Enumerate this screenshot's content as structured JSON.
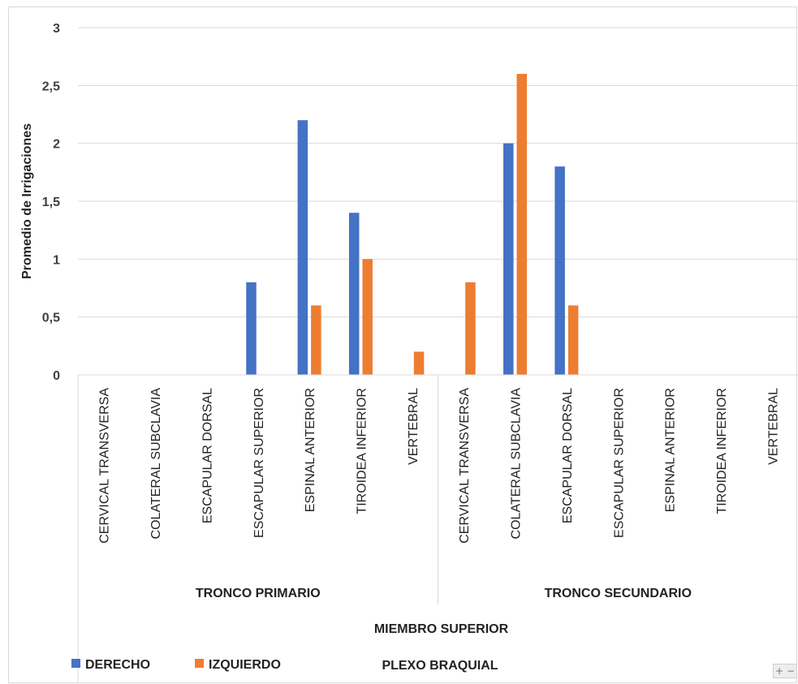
{
  "chart_data": {
    "type": "bar",
    "ylabel": "Promedio de Irrigaciones",
    "ylim": [
      0,
      3
    ],
    "yticks": [
      "0",
      "0,5",
      "1",
      "1,5",
      "2",
      "2,5",
      "3"
    ],
    "grid": true,
    "legend_position": "bottom-left",
    "categories": [
      "CERVICAL TRANSVERSA",
      "COLATERAL SUBCLAVIA",
      "ESCAPULAR DORSAL",
      "ESCAPULAR SUPERIOR",
      "ESPINAL ANTERIOR",
      "TIROIDEA INFERIOR",
      "VERTEBRAL",
      "CERVICAL TRANSVERSA",
      "COLATERAL SUBCLAVIA",
      "ESCAPULAR DORSAL",
      "ESCAPULAR SUPERIOR",
      "ESPINAL ANTERIOR",
      "TIROIDEA INFERIOR",
      "VERTEBRAL"
    ],
    "groups": [
      {
        "label": "TRONCO PRIMARIO",
        "count": 7
      },
      {
        "label": "TRONCO SECUNDARIO",
        "count": 7
      }
    ],
    "super_group": "MIEMBRO SUPERIOR",
    "outer_group": "PLEXO BRAQUIAL",
    "series": [
      {
        "name": "DERECHO",
        "color": "#4472c4",
        "values": [
          0,
          0,
          0,
          0.8,
          2.2,
          1.4,
          0,
          0,
          2.0,
          1.8,
          0,
          0,
          0,
          0
        ]
      },
      {
        "name": "IZQUIERDO",
        "color": "#ed7d31",
        "values": [
          0,
          0,
          0,
          0,
          0.6,
          1.0,
          0.2,
          0.8,
          2.6,
          0.6,
          0,
          0,
          0,
          0
        ]
      }
    ]
  },
  "controls": {
    "zoom_in": "+",
    "zoom_out": "−"
  }
}
